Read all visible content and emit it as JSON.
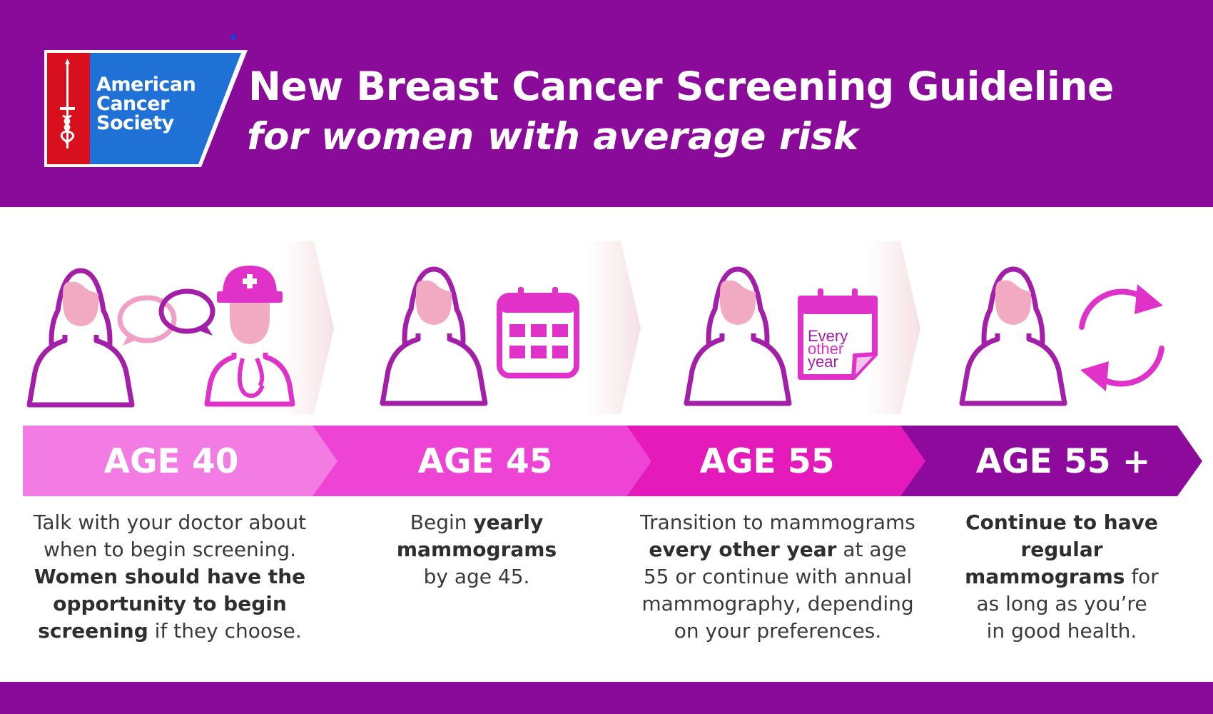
{
  "header": {
    "logo_lines": [
      "American",
      "Cancer",
      "Society"
    ],
    "title": "New Breast Cancer Screening Guideline",
    "subtitle": "for women with average risk"
  },
  "colors": {
    "purple": "#8a0a99",
    "age40_band": "#f27ce3",
    "age45_band": "#ee44d5",
    "age55_band": "#e41bba",
    "age55plus_band": "#8e0a9c",
    "icon_purple": "#a31fa8",
    "icon_pink": "#e032c8",
    "face_pink": "#f2aac2"
  },
  "icons": {
    "stage1": [
      "woman-icon",
      "speech-bubbles-icon",
      "doctor-icon"
    ],
    "stage2": [
      "woman-icon",
      "calendar-icon"
    ],
    "stage3": [
      "woman-icon",
      "calendar-note-icon"
    ],
    "stage4": [
      "woman-icon",
      "repeat-arrows-icon"
    ],
    "calendar_note": [
      "Every",
      "other",
      "year"
    ]
  },
  "stages": [
    {
      "age": "AGE 40",
      "description": [
        {
          "text": "Talk with your doctor about when to begin screening. ",
          "bold": false
        },
        {
          "text": "Women should have the opportunity to begin screening",
          "bold": true
        },
        {
          "text": " if they choose.",
          "bold": false
        }
      ]
    },
    {
      "age": "AGE 45",
      "description": [
        {
          "text": "Begin ",
          "bold": false
        },
        {
          "text": "yearly mammograms",
          "bold": true
        },
        {
          "text": " by age 45.",
          "bold": false
        }
      ]
    },
    {
      "age": "AGE 55",
      "description": [
        {
          "text": "Transition to mammograms ",
          "bold": false
        },
        {
          "text": "every other year",
          "bold": true
        },
        {
          "text": " at age 55 or continue with annual mammography, depending on your preferences.",
          "bold": false
        }
      ]
    },
    {
      "age": "AGE 55 +",
      "description": [
        {
          "text": "Continue to have regular mammograms",
          "bold": true
        },
        {
          "text": " for as long as you’re in good health.",
          "bold": false
        }
      ]
    }
  ]
}
